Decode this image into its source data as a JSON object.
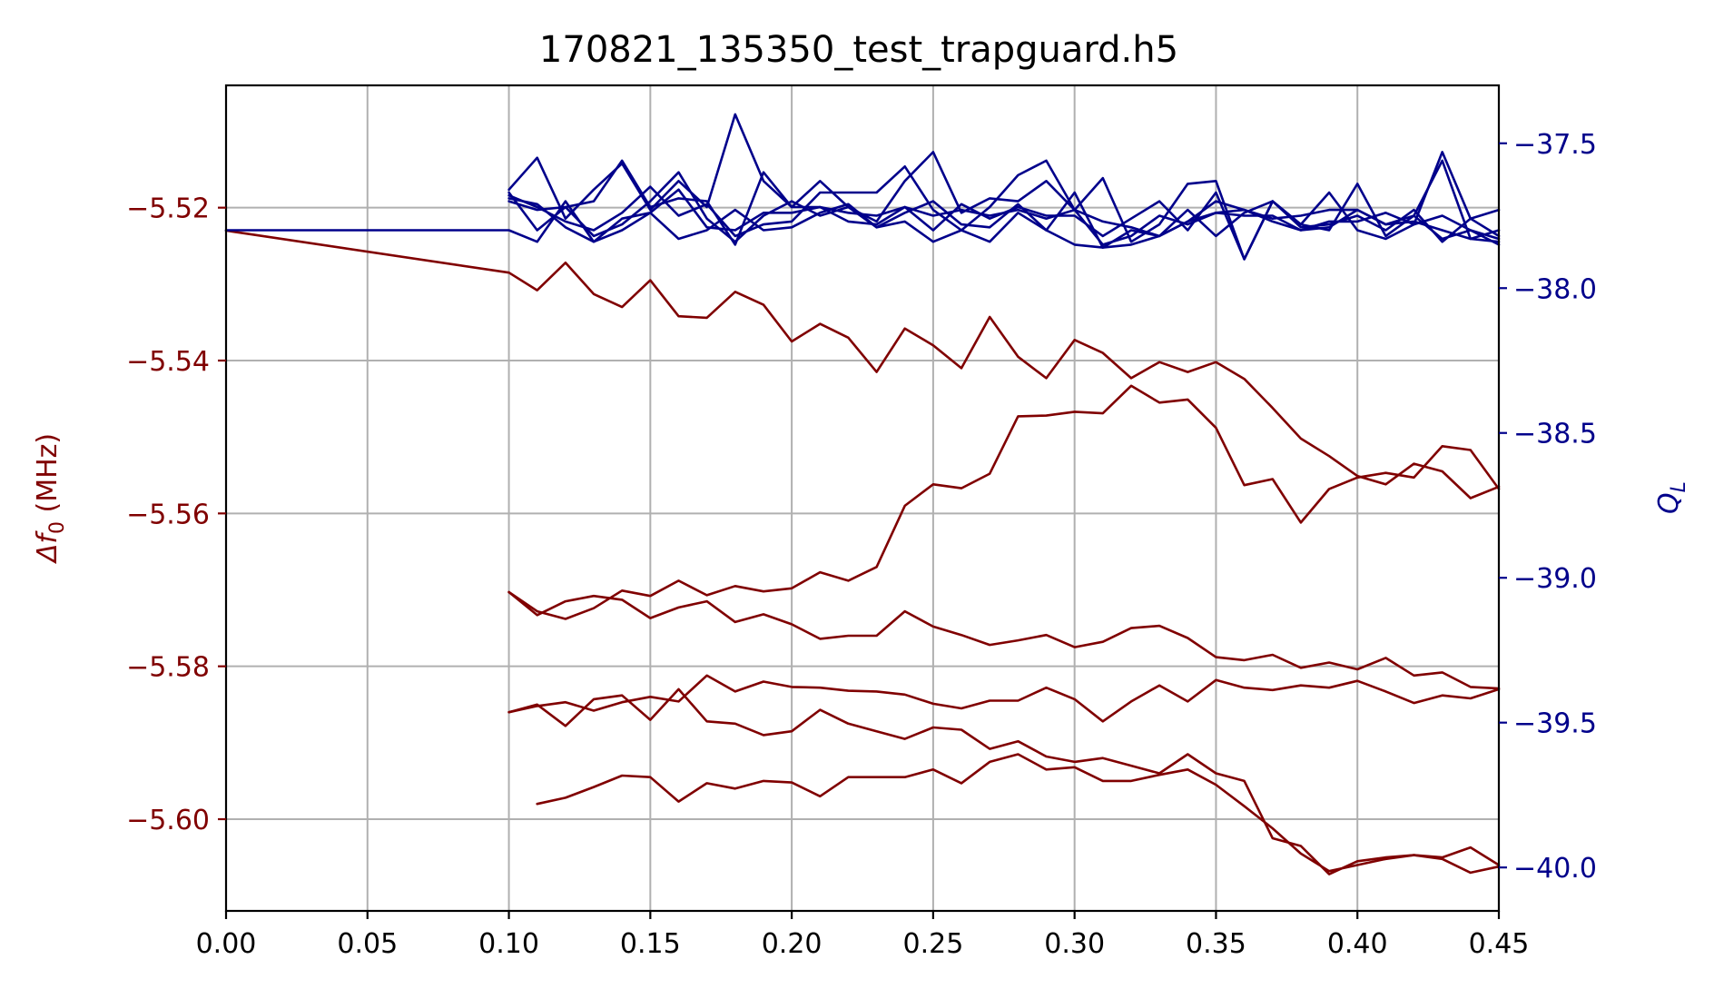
{
  "chart_data": {
    "type": "line",
    "title": "170821_135350_test_trapguard.h5",
    "xlim": [
      0.0,
      0.45
    ],
    "x_ticks": [
      0.0,
      0.05,
      0.1,
      0.15,
      0.2,
      0.25,
      0.3,
      0.35,
      0.4,
      0.45
    ],
    "x_tick_labels": [
      "0.00",
      "0.05",
      "0.10",
      "0.15",
      "0.20",
      "0.25",
      "0.30",
      "0.35",
      "0.40",
      "0.45"
    ],
    "grid": true,
    "left_axis": {
      "label_prefix": "Δf",
      "label_sub": "0",
      "label_suffix": " (MHz)",
      "color": "#800000",
      "ylim": [
        -5.612,
        -5.504
      ],
      "ticks": [
        -5.52,
        -5.54,
        -5.56,
        -5.58,
        -5.6
      ],
      "tick_labels": [
        "−5.52",
        "−5.54",
        "−5.56",
        "−5.58",
        "−5.60"
      ]
    },
    "right_axis": {
      "label_main": "Q",
      "label_sub": "L",
      "color": "#00008b",
      "ylim": [
        -40.15,
        -37.3
      ],
      "ticks": [
        -37.5,
        -38.0,
        -38.5,
        -39.0,
        -39.5,
        -40.0
      ],
      "tick_labels": [
        "−37.5",
        "−38.0",
        "−38.5",
        "−39.0",
        "−39.5",
        "−40.0"
      ]
    },
    "series_left": [
      {
        "x": [
          0.0,
          0.1,
          0.11,
          0.12,
          0.13,
          0.14,
          0.15,
          0.16,
          0.17,
          0.18,
          0.19,
          0.2,
          0.21,
          0.22,
          0.23,
          0.24,
          0.25,
          0.26,
          0.27,
          0.28,
          0.29,
          0.3,
          0.31,
          0.32,
          0.33,
          0.34,
          0.35,
          0.36,
          0.37,
          0.38,
          0.39,
          0.4,
          0.41,
          0.42,
          0.43,
          0.44,
          0.45
        ],
        "y": [
          -5.523,
          -5.5285,
          -5.5308,
          -5.5272,
          -5.5313,
          -5.533,
          -5.5295,
          -5.5342,
          -5.5344,
          -5.531,
          -5.5327,
          -5.5375,
          -5.5352,
          -5.537,
          -5.5415,
          -5.5358,
          -5.538,
          -5.541,
          -5.5343,
          -5.5395,
          -5.5423,
          -5.5373,
          -5.539,
          -5.5423,
          -5.5402,
          -5.5415,
          -5.5402,
          -5.5424,
          -5.5462,
          -5.5502,
          -5.5525,
          -5.5551,
          -5.5562,
          -5.5535,
          -5.5545,
          -5.558,
          -5.5565
        ]
      },
      {
        "x": [
          0.1,
          0.11,
          0.12,
          0.13,
          0.14,
          0.15,
          0.16,
          0.17,
          0.18,
          0.19,
          0.2,
          0.21,
          0.22,
          0.23,
          0.24,
          0.25,
          0.26,
          0.27,
          0.28,
          0.29,
          0.3,
          0.31,
          0.32,
          0.33,
          0.34,
          0.35,
          0.36,
          0.37,
          0.38,
          0.39,
          0.4,
          0.41,
          0.42,
          0.43,
          0.44,
          0.45
        ],
        "y": [
          -5.5703,
          -5.5728,
          -5.5738,
          -5.5724,
          -5.5701,
          -5.5708,
          -5.5688,
          -5.5707,
          -5.5695,
          -5.5702,
          -5.5698,
          -5.5677,
          -5.5688,
          -5.567,
          -5.559,
          -5.5562,
          -5.5567,
          -5.5548,
          -5.5473,
          -5.5472,
          -5.5467,
          -5.5469,
          -5.5433,
          -5.5455,
          -5.5451,
          -5.5488,
          -5.5563,
          -5.5555,
          -5.5612,
          -5.5568,
          -5.5553,
          -5.5547,
          -5.5553,
          -5.5512,
          -5.5517,
          -5.5568
        ]
      },
      {
        "x": [
          0.1,
          0.11,
          0.12,
          0.13,
          0.14,
          0.15,
          0.16,
          0.17,
          0.18,
          0.19,
          0.2,
          0.21,
          0.22,
          0.23,
          0.24,
          0.25,
          0.26,
          0.27,
          0.28,
          0.29,
          0.3,
          0.31,
          0.32,
          0.33,
          0.34,
          0.35,
          0.36,
          0.37,
          0.38,
          0.39,
          0.4,
          0.41,
          0.42,
          0.43,
          0.44,
          0.45
        ],
        "y": [
          -5.5703,
          -5.5733,
          -5.5715,
          -5.5708,
          -5.5713,
          -5.5737,
          -5.5723,
          -5.5715,
          -5.5742,
          -5.5732,
          -5.5745,
          -5.5764,
          -5.576,
          -5.576,
          -5.5728,
          -5.5748,
          -5.5759,
          -5.5772,
          -5.5766,
          -5.5759,
          -5.5775,
          -5.5768,
          -5.575,
          -5.5747,
          -5.5763,
          -5.5788,
          -5.5792,
          -5.5785,
          -5.5802,
          -5.5795,
          -5.5804,
          -5.5789,
          -5.5812,
          -5.5808,
          -5.5827,
          -5.5829
        ]
      },
      {
        "x": [
          0.1,
          0.11,
          0.12,
          0.13,
          0.14,
          0.15,
          0.16,
          0.17,
          0.18,
          0.19,
          0.2,
          0.21,
          0.22,
          0.23,
          0.24,
          0.25,
          0.26,
          0.27,
          0.28,
          0.29,
          0.3,
          0.31,
          0.32,
          0.33,
          0.34,
          0.35,
          0.36,
          0.37,
          0.38,
          0.39,
          0.4,
          0.41,
          0.42,
          0.43,
          0.44,
          0.45
        ],
        "y": [
          -5.586,
          -5.5852,
          -5.5847,
          -5.5858,
          -5.5847,
          -5.584,
          -5.5846,
          -5.5812,
          -5.5833,
          -5.582,
          -5.5827,
          -5.5828,
          -5.5832,
          -5.5833,
          -5.5837,
          -5.5849,
          -5.5855,
          -5.5845,
          -5.5845,
          -5.5828,
          -5.5843,
          -5.5872,
          -5.5846,
          -5.5825,
          -5.5846,
          -5.5818,
          -5.5828,
          -5.5831,
          -5.5825,
          -5.5828,
          -5.5819,
          -5.5833,
          -5.5848,
          -5.5838,
          -5.5842,
          -5.583
        ]
      },
      {
        "x": [
          0.1,
          0.11,
          0.12,
          0.13,
          0.14,
          0.15,
          0.16,
          0.17,
          0.18,
          0.19,
          0.2,
          0.21,
          0.22,
          0.23,
          0.24,
          0.25,
          0.26,
          0.27,
          0.28,
          0.29,
          0.3,
          0.31,
          0.32,
          0.33,
          0.34,
          0.35,
          0.36,
          0.37,
          0.38,
          0.39,
          0.4,
          0.41,
          0.42,
          0.43,
          0.44,
          0.45
        ],
        "y": [
          -5.586,
          -5.585,
          -5.5878,
          -5.5843,
          -5.5838,
          -5.587,
          -5.583,
          -5.5872,
          -5.5875,
          -5.589,
          -5.5885,
          -5.5857,
          -5.5875,
          -5.5885,
          -5.5895,
          -5.588,
          -5.5883,
          -5.5908,
          -5.5898,
          -5.5918,
          -5.5925,
          -5.592,
          -5.593,
          -5.594,
          -5.5915,
          -5.594,
          -5.595,
          -5.6025,
          -5.6035,
          -5.6072,
          -5.6055,
          -5.605,
          -5.6047,
          -5.605,
          -5.6037,
          -5.606
        ]
      },
      {
        "x": [
          0.11,
          0.12,
          0.13,
          0.14,
          0.15,
          0.16,
          0.17,
          0.18,
          0.19,
          0.2,
          0.21,
          0.22,
          0.23,
          0.24,
          0.25,
          0.26,
          0.27,
          0.28,
          0.29,
          0.3,
          0.31,
          0.32,
          0.33,
          0.34,
          0.35,
          0.36,
          0.37,
          0.38,
          0.39,
          0.4,
          0.41,
          0.42,
          0.43,
          0.44,
          0.45
        ],
        "y": [
          -5.598,
          -5.5972,
          -5.5958,
          -5.5943,
          -5.5945,
          -5.5977,
          -5.5953,
          -5.596,
          -5.595,
          -5.5952,
          -5.597,
          -5.5945,
          -5.5945,
          -5.5945,
          -5.5935,
          -5.5953,
          -5.5925,
          -5.5915,
          -5.5935,
          -5.5932,
          -5.595,
          -5.595,
          -5.5942,
          -5.5935,
          -5.5955,
          -5.5983,
          -5.6012,
          -5.6045,
          -5.6068,
          -5.606,
          -5.6052,
          -5.6047,
          -5.6052,
          -5.607,
          -5.6062
        ]
      }
    ],
    "series_right": [
      {
        "x": [
          0.0,
          0.1,
          0.11,
          0.12,
          0.13,
          0.14,
          0.15,
          0.16,
          0.17,
          0.18,
          0.19,
          0.2,
          0.21,
          0.22,
          0.23,
          0.24,
          0.25,
          0.26,
          0.27,
          0.28,
          0.29,
          0.3,
          0.31,
          0.32,
          0.33,
          0.34,
          0.35,
          0.36,
          0.37,
          0.38,
          0.39,
          0.4,
          0.41,
          0.42,
          0.43,
          0.44,
          0.45
        ],
        "y": [
          -37.8,
          -37.8,
          -37.84,
          -37.7,
          -37.84,
          -37.8,
          -37.74,
          -37.83,
          -37.8,
          -37.73,
          -37.8,
          -37.79,
          -37.74,
          -37.71,
          -37.79,
          -37.77,
          -37.84,
          -37.8,
          -37.84,
          -37.74,
          -37.8,
          -37.85,
          -37.86,
          -37.85,
          -37.82,
          -37.77,
          -37.7,
          -37.73,
          -37.77,
          -37.8,
          -37.79,
          -37.73,
          -37.78,
          -37.75,
          -37.83,
          -37.8,
          -37.85
        ]
      },
      {
        "x": [
          0.1,
          0.11,
          0.12,
          0.13,
          0.14,
          0.15,
          0.16,
          0.17,
          0.18,
          0.19,
          0.2,
          0.21,
          0.22,
          0.23,
          0.24,
          0.25,
          0.26,
          0.27,
          0.28,
          0.29,
          0.3,
          0.31,
          0.32,
          0.33,
          0.34,
          0.35,
          0.36,
          0.37,
          0.38,
          0.39,
          0.4,
          0.41,
          0.42,
          0.43,
          0.44,
          0.45
        ],
        "y": [
          -37.66,
          -37.55,
          -37.76,
          -37.66,
          -37.57,
          -37.73,
          -37.63,
          -37.72,
          -37.4,
          -37.63,
          -37.72,
          -37.63,
          -37.72,
          -37.77,
          -37.63,
          -37.53,
          -37.74,
          -37.69,
          -37.7,
          -37.63,
          -37.73,
          -37.62,
          -37.84,
          -37.78,
          -37.64,
          -37.63,
          -37.9,
          -37.7,
          -37.78,
          -37.8,
          -37.64,
          -37.82,
          -37.75,
          -37.56,
          -37.83,
          -37.84
        ]
      },
      {
        "x": [
          0.1,
          0.11,
          0.12,
          0.13,
          0.14,
          0.15,
          0.16,
          0.17,
          0.18,
          0.19,
          0.2,
          0.21,
          0.22,
          0.23,
          0.24,
          0.25,
          0.26,
          0.27,
          0.28,
          0.29,
          0.3,
          0.31,
          0.32,
          0.33,
          0.34,
          0.35,
          0.36,
          0.37,
          0.38,
          0.39,
          0.4,
          0.41,
          0.42,
          0.43,
          0.44,
          0.45
        ],
        "y": [
          -37.67,
          -37.8,
          -37.72,
          -37.7,
          -37.56,
          -37.72,
          -37.69,
          -37.7,
          -37.85,
          -37.6,
          -37.72,
          -37.72,
          -37.77,
          -37.78,
          -37.72,
          -37.8,
          -37.71,
          -37.76,
          -37.72,
          -37.75,
          -37.75,
          -37.82,
          -37.76,
          -37.7,
          -37.8,
          -37.67,
          -37.9,
          -37.7,
          -37.78,
          -37.67,
          -37.8,
          -37.83,
          -37.78,
          -37.53,
          -37.76,
          -37.73
        ]
      },
      {
        "x": [
          0.1,
          0.11,
          0.12,
          0.13,
          0.14,
          0.15,
          0.16,
          0.17,
          0.18,
          0.19,
          0.2,
          0.21,
          0.22,
          0.23,
          0.24,
          0.25,
          0.26,
          0.27,
          0.28,
          0.29,
          0.3,
          0.31,
          0.32,
          0.33,
          0.34,
          0.35,
          0.36,
          0.37,
          0.38,
          0.39,
          0.4,
          0.41,
          0.42,
          0.43,
          0.44,
          0.45
        ],
        "y": [
          -37.7,
          -37.73,
          -37.72,
          -37.82,
          -37.78,
          -37.7,
          -37.6,
          -37.76,
          -37.84,
          -37.75,
          -37.7,
          -37.75,
          -37.72,
          -37.79,
          -37.74,
          -37.7,
          -37.78,
          -37.79,
          -37.71,
          -37.8,
          -37.67,
          -37.86,
          -37.8,
          -37.82,
          -37.73,
          -37.82,
          -37.74,
          -37.7,
          -37.79,
          -37.78,
          -37.75,
          -37.8,
          -37.73,
          -37.84,
          -37.76,
          -37.82
        ]
      },
      {
        "x": [
          0.1,
          0.11,
          0.12,
          0.13,
          0.14,
          0.15,
          0.16,
          0.17,
          0.18,
          0.19,
          0.2,
          0.21,
          0.22,
          0.23,
          0.24,
          0.25,
          0.26,
          0.27,
          0.28,
          0.29,
          0.3,
          0.31,
          0.32,
          0.33,
          0.34,
          0.35,
          0.36,
          0.37,
          0.38,
          0.39,
          0.4,
          0.41,
          0.42,
          0.43,
          0.44,
          0.45
        ],
        "y": [
          -37.68,
          -37.72,
          -37.77,
          -37.8,
          -37.74,
          -37.65,
          -37.75,
          -37.71,
          -37.82,
          -37.78,
          -37.77,
          -37.67,
          -37.67,
          -37.67,
          -37.58,
          -37.73,
          -37.8,
          -37.72,
          -37.61,
          -37.56,
          -37.73,
          -37.85,
          -37.82,
          -37.75,
          -37.78,
          -37.74,
          -37.73,
          -37.76,
          -37.75,
          -37.73,
          -37.73,
          -37.78,
          -37.77,
          -37.8,
          -37.83,
          -37.8
        ]
      },
      {
        "x": [
          0.1,
          0.11,
          0.12,
          0.13,
          0.14,
          0.15,
          0.16,
          0.17,
          0.18,
          0.19,
          0.2,
          0.21,
          0.22,
          0.23,
          0.24,
          0.25,
          0.26,
          0.27,
          0.28,
          0.29,
          0.3,
          0.31,
          0.32,
          0.33,
          0.34,
          0.35,
          0.36,
          0.37,
          0.38,
          0.39,
          0.4,
          0.41,
          0.42,
          0.43,
          0.44,
          0.45
        ],
        "y": [
          -37.69,
          -37.71,
          -37.79,
          -37.84,
          -37.76,
          -37.74,
          -37.66,
          -37.79,
          -37.8,
          -37.74,
          -37.74,
          -37.72,
          -37.74,
          -37.75,
          -37.72,
          -37.75,
          -37.73,
          -37.75,
          -37.73,
          -37.76,
          -37.73,
          -37.77,
          -37.79,
          -37.82,
          -37.77,
          -37.74,
          -37.75,
          -37.75,
          -37.8,
          -37.77,
          -37.77,
          -37.74,
          -37.78,
          -37.75,
          -37.8,
          -37.83
        ]
      }
    ]
  }
}
